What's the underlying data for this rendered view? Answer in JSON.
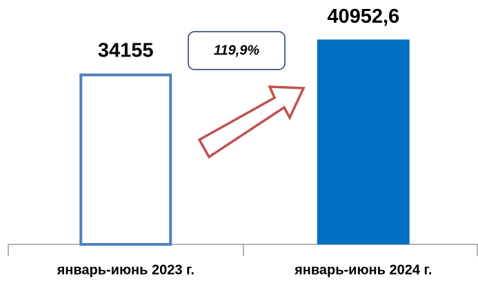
{
  "chart_data": {
    "type": "bar",
    "categories": [
      "январь-июнь 2023 г.",
      "январь-июнь 2024 г."
    ],
    "values": [
      34155,
      40952.6
    ],
    "value_labels": [
      "34155",
      "40952,6"
    ],
    "colors": [
      "#4f81bd",
      "#0070c0"
    ],
    "styles": [
      "outline",
      "filled"
    ],
    "annotation": "119,9%",
    "ylim": [
      0,
      45000
    ]
  }
}
